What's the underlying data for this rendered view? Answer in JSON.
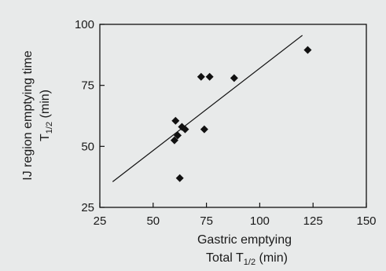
{
  "chart_data": {
    "type": "scatter",
    "xlabel_line1": "Gastric emptying",
    "xlabel_line2_main": "Total T",
    "xlabel_line2_sub": "1/2",
    "xlabel_line2_unit": " (min)",
    "ylabel_line1": "IJ region emptying time",
    "ylabel_line2_main": "T",
    "ylabel_line2_sub": "1/2",
    "ylabel_line2_unit": " (min)",
    "xlim": [
      25,
      150
    ],
    "ylim": [
      25,
      100
    ],
    "xticks": [
      25,
      50,
      75,
      100,
      125,
      150
    ],
    "yticks": [
      25,
      50,
      75,
      100
    ],
    "points": [
      {
        "x": 60,
        "y": 52.5
      },
      {
        "x": 60.5,
        "y": 60.5
      },
      {
        "x": 61.5,
        "y": 54.5
      },
      {
        "x": 62.5,
        "y": 37
      },
      {
        "x": 63.5,
        "y": 58
      },
      {
        "x": 65,
        "y": 57
      },
      {
        "x": 72.5,
        "y": 78.5
      },
      {
        "x": 74,
        "y": 57
      },
      {
        "x": 76.5,
        "y": 78.5
      },
      {
        "x": 88,
        "y": 78
      },
      {
        "x": 122.5,
        "y": 89.5
      }
    ],
    "fit_line": {
      "x": [
        31,
        120
      ],
      "y": [
        35.5,
        95.5
      ]
    },
    "grid": false,
    "marker": "diamond",
    "color": "#111111"
  }
}
